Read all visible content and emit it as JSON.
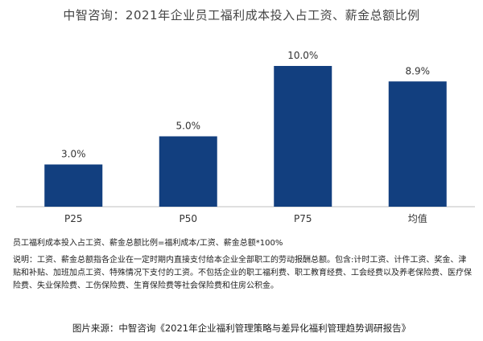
{
  "chart_data": {
    "type": "bar",
    "title": "中智咨询：2021年企业员工福利成本投入占工资、薪金总额比例",
    "categories": [
      "P25",
      "P50",
      "P75",
      "均值"
    ],
    "values": [
      3.0,
      5.0,
      10.0,
      8.9
    ],
    "data_labels": [
      "3.0%",
      "5.0%",
      "10.0%",
      "8.9%"
    ],
    "ylim": [
      0,
      10.0
    ],
    "bar_color": "#123F7F",
    "grid": false,
    "legend": "none"
  },
  "formula": "员工福利成本投入占工资、薪金总额比例=福利成本/工资、薪金总额*100%",
  "note": "说明：工资、薪金总额指各企业在一定时期内直接支付给本企业全部职工的劳动报酬总额。包含:计时工资、计件工资、奖金、津贴和补贴、加班加点工资、特殊情况下支付的工资。不包括企业的职工福利费、职工教育经费、工会经费以及养老保险费、医疗保险费、失业保险费、工伤保险费、生育保险费等社会保险费和住房公积金。",
  "source": "图片来源：中智咨询《2021年企业福利管理策略与差异化福利管理趋势调研报告》"
}
